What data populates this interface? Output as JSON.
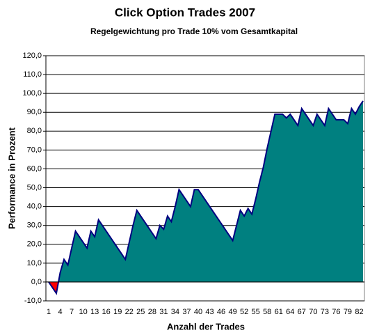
{
  "chart_data": {
    "type": "area",
    "title": "Click Option Trades 2007",
    "subtitle": "Regelgewichtung pro Trade 10% vom Gesamtkapital",
    "x_label": "Anzahl der Trades",
    "y_label": "Performance in Prozent",
    "categories": [
      1,
      null,
      null,
      4,
      null,
      null,
      7,
      null,
      null,
      10,
      null,
      null,
      13,
      null,
      null,
      16,
      null,
      null,
      19,
      null,
      null,
      22,
      null,
      null,
      25,
      null,
      null,
      28,
      null,
      null,
      31,
      null,
      null,
      34,
      null,
      null,
      37,
      null,
      null,
      40,
      null,
      null,
      43,
      null,
      null,
      46,
      null,
      null,
      49,
      null,
      null,
      52,
      null,
      null,
      55,
      null,
      null,
      58,
      null,
      null,
      61,
      null,
      null,
      64,
      null,
      null,
      67,
      null,
      null,
      70,
      null,
      null,
      73,
      null,
      null,
      76,
      null,
      null,
      79,
      null,
      null,
      82,
      null
    ],
    "values": [
      0,
      -3,
      -6,
      5,
      12,
      9,
      18,
      27,
      24,
      21,
      18,
      27,
      24,
      33,
      30,
      27,
      24,
      21,
      18,
      15,
      12,
      21,
      30,
      38,
      35,
      32,
      29,
      26,
      23,
      30,
      28,
      35,
      32,
      40,
      49,
      46,
      43,
      40,
      49,
      49,
      46,
      43,
      40,
      37,
      34,
      31,
      28,
      25,
      22,
      30,
      38,
      35,
      39,
      36,
      44,
      53,
      61,
      71,
      80,
      89,
      89,
      89,
      87,
      89,
      86,
      83,
      92,
      89,
      86,
      83,
      89,
      86,
      83,
      92,
      89,
      86,
      86,
      86,
      84,
      92,
      89,
      93,
      96
    ],
    "color": "#008080",
    "negative_color": "#ff0000",
    "line_color": "#000080",
    "ylim": [
      -10,
      120
    ],
    "yticks": [
      {
        "value": -10,
        "label": "-10,0"
      },
      {
        "value": 0,
        "label": "0,0"
      },
      {
        "value": 10,
        "label": "10,0"
      },
      {
        "value": 20,
        "label": "20,0"
      },
      {
        "value": 30,
        "label": "30,0"
      },
      {
        "value": 40,
        "label": "40,0"
      },
      {
        "value": 50,
        "label": "50,0"
      },
      {
        "value": 60,
        "label": "60,0"
      },
      {
        "value": 70,
        "label": "70,0"
      },
      {
        "value": 80,
        "label": "80,0"
      },
      {
        "value": 90,
        "label": "90,0"
      },
      {
        "value": 100,
        "label": "100,0"
      },
      {
        "value": 110,
        "label": "110,0"
      },
      {
        "value": 120,
        "label": "120,0"
      }
    ],
    "grid": true
  }
}
